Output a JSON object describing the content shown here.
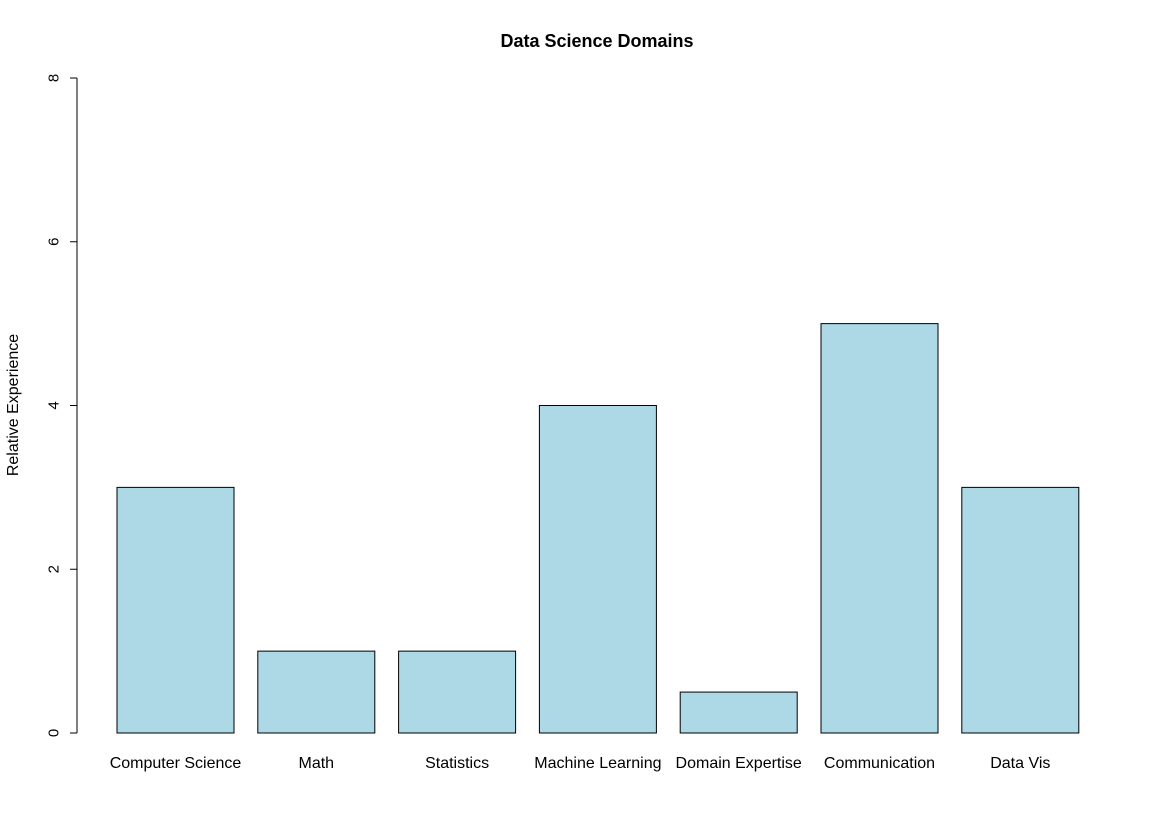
{
  "chart_data": {
    "type": "bar",
    "title": "Data Science Domains",
    "xlabel": "",
    "ylabel": "Relative Experience",
    "categories": [
      "Computer Science",
      "Math",
      "Statistics",
      "Machine Learning",
      "Domain Expertise",
      "Communication",
      "Data Vis"
    ],
    "values": [
      3,
      1,
      1,
      4,
      0.5,
      5,
      3
    ],
    "ylim": [
      0,
      8
    ],
    "yticks": [
      "0",
      "2",
      "4",
      "6",
      "8"
    ],
    "grid": false,
    "legend": "none",
    "bar_color": "#add8e6",
    "bar_border_color": "#000000"
  }
}
